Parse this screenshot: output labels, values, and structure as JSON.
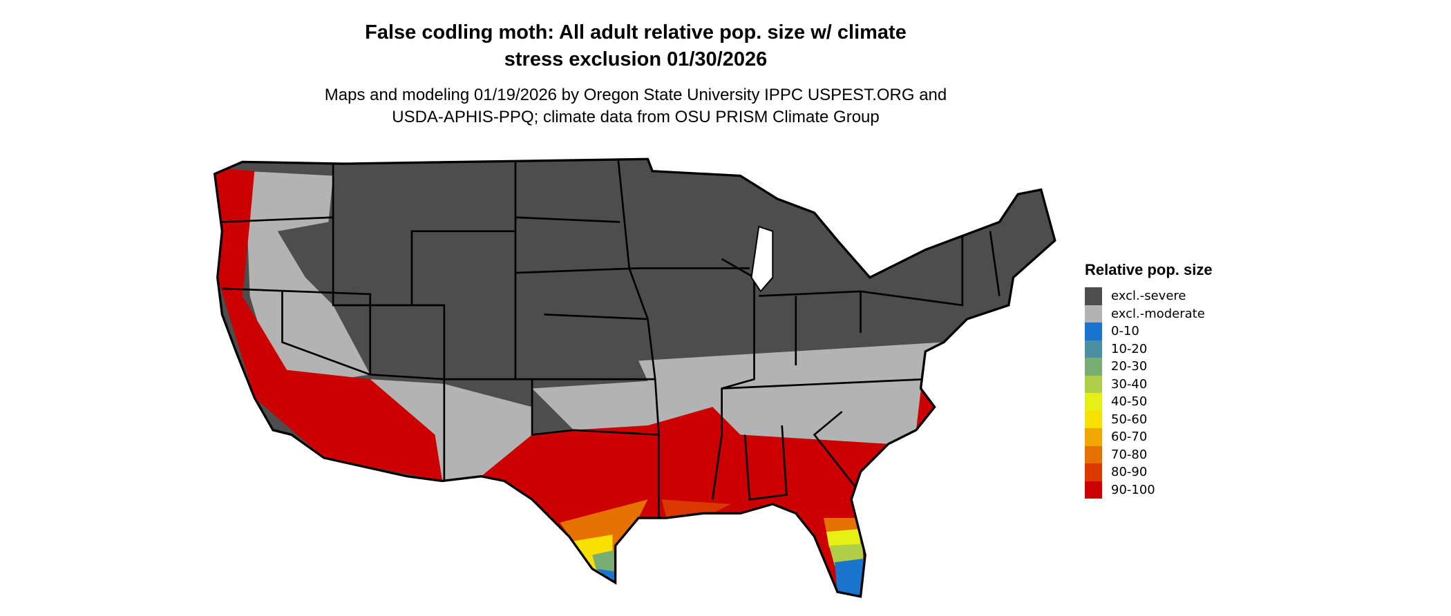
{
  "title": {
    "line1": "False codling moth: All adult relative pop. size w/ climate",
    "line2": "stress exclusion 01/30/2026"
  },
  "subtitle": {
    "line1": "Maps and modeling 01/19/2026 by Oregon State University IPPC USPEST.ORG and",
    "line2": "USDA-APHIS-PPQ; climate data from OSU PRISM Climate Group"
  },
  "legend": {
    "title": "Relative pop. size",
    "items": [
      {
        "label": "excl.-severe",
        "color": "#4d4d4d"
      },
      {
        "label": "excl.-moderate",
        "color": "#b3b3b3"
      },
      {
        "label": "0-10",
        "color": "#1874cd"
      },
      {
        "label": "10-20",
        "color": "#4a90a0"
      },
      {
        "label": "20-30",
        "color": "#7aad74"
      },
      {
        "label": "30-40",
        "color": "#b0cf48"
      },
      {
        "label": "40-50",
        "color": "#e6f014"
      },
      {
        "label": "50-60",
        "color": "#f8e000"
      },
      {
        "label": "60-70",
        "color": "#f0a800"
      },
      {
        "label": "70-80",
        "color": "#e57200"
      },
      {
        "label": "80-90",
        "color": "#d93800"
      },
      {
        "label": "90-100",
        "color": "#cc0000"
      }
    ]
  },
  "map": {
    "region": "Contiguous United States",
    "boundaries": "state borders"
  }
}
